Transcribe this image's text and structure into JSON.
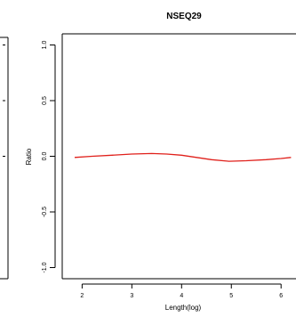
{
  "chart_data": {
    "type": "line",
    "title": "NSEQ29",
    "xlabel": "Length(log)",
    "ylabel": "Ratio",
    "xlim": [
      1.6,
      6.3
    ],
    "ylim": [
      -1.1,
      1.1
    ],
    "x_ticks": [
      {
        "value": 2,
        "label": "2"
      },
      {
        "value": 3,
        "label": "3"
      },
      {
        "value": 4,
        "label": "4"
      },
      {
        "value": 5,
        "label": "5"
      },
      {
        "value": 6,
        "label": "6"
      }
    ],
    "y_ticks": [
      {
        "value": -1.0,
        "label": "-1.0"
      },
      {
        "value": -0.5,
        "label": "-0.5"
      },
      {
        "value": 0.0,
        "label": "0.0"
      },
      {
        "value": 0.5,
        "label": "0.5"
      },
      {
        "value": 1.0,
        "label": "1.0"
      }
    ],
    "series": [
      {
        "color": "#e0201b",
        "x": [
          1.85,
          2.2,
          2.6,
          3.0,
          3.4,
          3.7,
          4.0,
          4.3,
          4.6,
          4.95,
          5.3,
          5.7,
          6.0,
          6.2
        ],
        "y": [
          -0.01,
          0.0,
          0.01,
          0.02,
          0.025,
          0.02,
          0.01,
          -0.01,
          -0.03,
          -0.045,
          -0.04,
          -0.03,
          -0.02,
          -0.01
        ]
      }
    ],
    "grid": false,
    "left_panel_tick_marks": [
      0.0,
      0.5,
      1.0
    ]
  }
}
